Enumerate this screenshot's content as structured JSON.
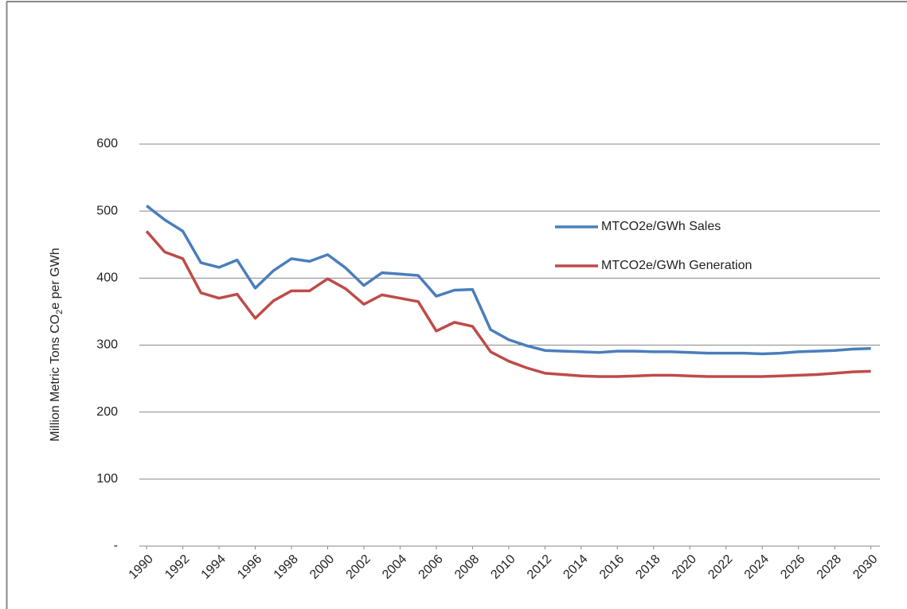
{
  "chart_data": {
    "type": "line",
    "y_label": [
      "Million Metric Tons CO",
      "2",
      "e per GWh"
    ],
    "x": [
      1990,
      1991,
      1992,
      1993,
      1994,
      1995,
      1996,
      1997,
      1998,
      1999,
      2000,
      2001,
      2002,
      2003,
      2004,
      2005,
      2006,
      2007,
      2008,
      2009,
      2010,
      2011,
      2012,
      2013,
      2014,
      2015,
      2016,
      2017,
      2018,
      2019,
      2020,
      2021,
      2022,
      2023,
      2024,
      2025,
      2026,
      2027,
      2028,
      2029,
      2030
    ],
    "xlim": [
      1989.6,
      2030.5
    ],
    "xticks": [
      1990,
      1992,
      1994,
      1996,
      1998,
      2000,
      2002,
      2004,
      2006,
      2008,
      2010,
      2012,
      2014,
      2016,
      2018,
      2020,
      2022,
      2024,
      2026,
      2028,
      2030
    ],
    "ylim": [
      0,
      600
    ],
    "yticks": [
      {
        "value": 0,
        "label": "-"
      },
      100,
      200,
      300,
      400,
      500,
      600
    ],
    "grid": true,
    "legend": "upper-right",
    "series": [
      {
        "name": "MTCO2e/GWh Sales",
        "color": "#4a7ebb",
        "values": [
          508,
          487,
          470,
          423,
          416,
          427,
          385,
          411,
          429,
          425,
          435,
          415,
          389,
          408,
          406,
          404,
          373,
          382,
          383,
          323,
          308,
          299,
          292,
          291,
          290,
          289,
          291,
          291,
          290,
          290,
          289,
          288,
          288,
          288,
          287,
          288,
          290,
          291,
          292,
          294,
          295
        ]
      },
      {
        "name": "MTCO2e/GWh Generation",
        "color": "#be4b48",
        "values": [
          470,
          439,
          429,
          378,
          370,
          376,
          340,
          366,
          381,
          381,
          399,
          384,
          361,
          375,
          370,
          365,
          321,
          334,
          328,
          290,
          276,
          266,
          258,
          256,
          254,
          253,
          253,
          254,
          255,
          255,
          254,
          253,
          253,
          253,
          253,
          254,
          255,
          256,
          258,
          260,
          261
        ]
      }
    ]
  }
}
